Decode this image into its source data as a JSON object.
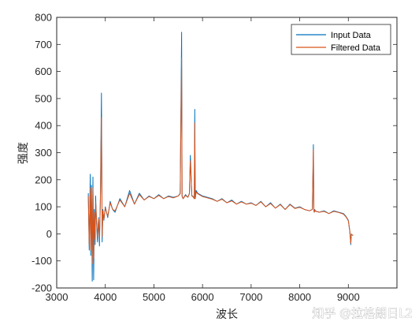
{
  "chart_data": {
    "type": "line",
    "title": "",
    "xlabel": "波长",
    "ylabel": "强度",
    "xlim": [
      3000,
      10000
    ],
    "ylim": [
      -200,
      800
    ],
    "xticks": [
      3000,
      4000,
      5000,
      6000,
      7000,
      8000,
      9000
    ],
    "yticks": [
      -200,
      -100,
      0,
      100,
      200,
      300,
      400,
      500,
      600,
      700,
      800
    ],
    "grid": false,
    "legend_position": "top-right",
    "series": [
      {
        "name": "Input Data",
        "color": "#0072BD",
        "x": [
          3650,
          3670,
          3690,
          3700,
          3715,
          3730,
          3745,
          3760,
          3775,
          3790,
          3800,
          3820,
          3840,
          3860,
          3880,
          3900,
          3920,
          3935,
          3950,
          3970,
          4000,
          4050,
          4100,
          4150,
          4200,
          4300,
          4400,
          4500,
          4600,
          4700,
          4800,
          4900,
          5000,
          5100,
          5200,
          5300,
          5400,
          5500,
          5540,
          5570,
          5580,
          5600,
          5650,
          5700,
          5730,
          5750,
          5780,
          5800,
          5830,
          5840,
          5850,
          5870,
          5900,
          6000,
          6100,
          6200,
          6300,
          6400,
          6500,
          6600,
          6700,
          6800,
          6900,
          7000,
          7100,
          7200,
          7300,
          7400,
          7500,
          7600,
          7700,
          7800,
          7900,
          8000,
          8100,
          8200,
          8260,
          8280,
          8290,
          8300,
          8310,
          8320,
          8400,
          8500,
          8600,
          8700,
          8800,
          8900,
          8950,
          9000,
          9030,
          9050,
          9060,
          9080,
          9100
        ],
        "y": [
          150,
          -60,
          220,
          -80,
          180,
          -175,
          210,
          -170,
          90,
          -40,
          140,
          40,
          -30,
          60,
          -45,
          140,
          520,
          -30,
          90,
          50,
          100,
          60,
          120,
          90,
          80,
          130,
          100,
          160,
          110,
          150,
          125,
          140,
          130,
          145,
          130,
          140,
          135,
          140,
          150,
          745,
          140,
          130,
          145,
          135,
          150,
          290,
          140,
          140,
          130,
          460,
          130,
          160,
          150,
          140,
          135,
          130,
          120,
          130,
          115,
          125,
          110,
          120,
          110,
          115,
          105,
          120,
          100,
          115,
          95,
          110,
          90,
          110,
          95,
          100,
          90,
          85,
          90,
          330,
          85,
          80,
          90,
          85,
          80,
          85,
          75,
          85,
          80,
          75,
          65,
          50,
          10,
          -40,
          0,
          -5,
          -5
        ],
        "note": ""
      },
      {
        "name": "Filtered Data",
        "color": "#D95319",
        "x": [
          3650,
          3670,
          3690,
          3700,
          3715,
          3730,
          3745,
          3760,
          3775,
          3790,
          3800,
          3820,
          3840,
          3860,
          3880,
          3900,
          3920,
          3935,
          3950,
          3970,
          4000,
          4050,
          4100,
          4150,
          4200,
          4300,
          4400,
          4500,
          4600,
          4700,
          4800,
          4900,
          5000,
          5100,
          5200,
          5300,
          5400,
          5500,
          5540,
          5570,
          5580,
          5600,
          5650,
          5700,
          5730,
          5750,
          5780,
          5800,
          5830,
          5840,
          5850,
          5870,
          5900,
          6000,
          6100,
          6200,
          6300,
          6400,
          6500,
          6600,
          6700,
          6800,
          6900,
          7000,
          7100,
          7200,
          7300,
          7400,
          7500,
          7600,
          7700,
          7800,
          7900,
          8000,
          8100,
          8200,
          8260,
          8280,
          8290,
          8300,
          8310,
          8320,
          8400,
          8500,
          8600,
          8700,
          8800,
          8900,
          8950,
          9000,
          9030,
          9050,
          9060,
          9080,
          9100
        ],
        "y": [
          140,
          -40,
          170,
          -60,
          150,
          -110,
          170,
          -90,
          80,
          -20,
          120,
          50,
          -10,
          55,
          -20,
          130,
          430,
          -10,
          85,
          55,
          95,
          65,
          115,
          90,
          85,
          125,
          100,
          150,
          110,
          145,
          125,
          138,
          130,
          142,
          130,
          138,
          133,
          140,
          148,
          650,
          138,
          130,
          142,
          135,
          148,
          270,
          140,
          138,
          130,
          410,
          130,
          155,
          148,
          138,
          133,
          128,
          120,
          128,
          115,
          122,
          110,
          118,
          110,
          113,
          105,
          118,
          100,
          112,
          95,
          108,
          90,
          108,
          94,
          98,
          90,
          85,
          90,
          310,
          85,
          80,
          88,
          84,
          80,
          83,
          75,
          83,
          79,
          73,
          63,
          48,
          12,
          -35,
          -2,
          -5,
          -5
        ]
      }
    ]
  },
  "watermark": {
    "text": "知乎 @拉格朗日L2"
  }
}
